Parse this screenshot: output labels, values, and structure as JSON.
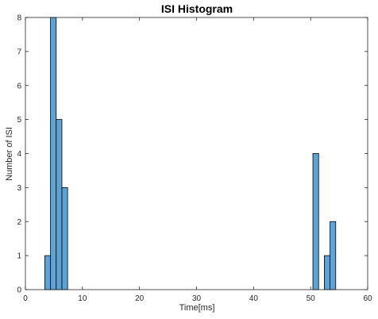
{
  "chart_data": {
    "type": "bar",
    "title": "ISI Histogram",
    "xlabel": "Time[ms]",
    "ylabel": "Number of ISI",
    "xlim": [
      0,
      60
    ],
    "ylim": [
      0,
      8
    ],
    "xticks": [
      0,
      10,
      20,
      30,
      40,
      50,
      60
    ],
    "yticks": [
      0,
      1,
      2,
      3,
      4,
      5,
      6,
      7,
      8
    ],
    "bin_width": 1,
    "bins": [
      {
        "start": 3.4,
        "value": 1
      },
      {
        "start": 4.4,
        "value": 8
      },
      {
        "start": 5.4,
        "value": 5
      },
      {
        "start": 6.4,
        "value": 3
      },
      {
        "start": 50.4,
        "value": 4
      },
      {
        "start": 52.4,
        "value": 1
      },
      {
        "start": 53.4,
        "value": 2
      }
    ],
    "bar_color": "#5da3d6",
    "edge_color": "#000000",
    "grid": false
  }
}
